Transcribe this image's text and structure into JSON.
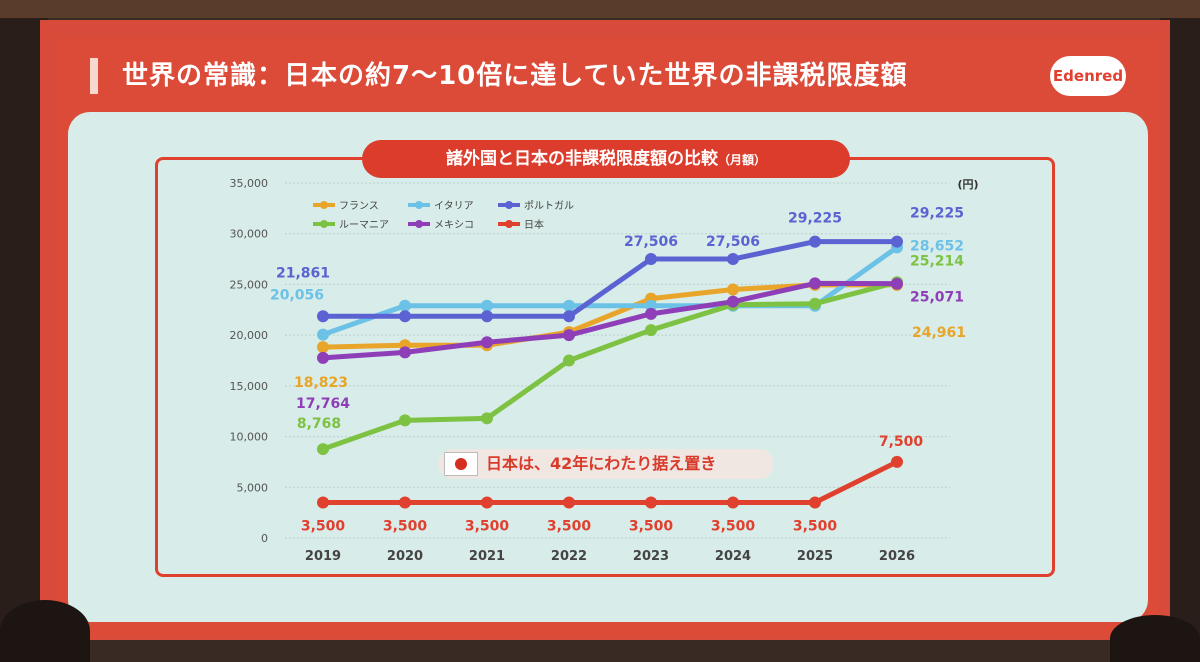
{
  "slide": {
    "title": "世界の常識：日本の約7～10倍に達していた世界の非課税限度額",
    "logo": "Edenred"
  },
  "chart_title": {
    "main": "諸外国と日本の非課税限度額の比較",
    "sub": "（月額）"
  },
  "callout": "日本は、42年にわたり据え置き",
  "chart_data": {
    "type": "line",
    "title": "諸外国と日本の非課税限度額の比較（月額）",
    "y_unit": "(円)",
    "ylim": [
      0,
      35000
    ],
    "yticks": [
      "35,000",
      "30,000",
      "25,000",
      "20,000",
      "15,000",
      "10,000",
      "5,000",
      "0"
    ],
    "x": [
      "2019",
      "2020",
      "2021",
      "2022",
      "2023",
      "2024",
      "2025",
      "2026"
    ],
    "grid": true,
    "legend_position": "top-left",
    "series": [
      {
        "name": "フランス",
        "color": "#e8a52a",
        "values": [
          18823,
          19000,
          19000,
          20300,
          23600,
          24500,
          24961,
          24961
        ]
      },
      {
        "name": "イタリア",
        "color": "#6cc2e6",
        "values": [
          20056,
          22900,
          22900,
          22900,
          22900,
          22900,
          22900,
          28652
        ]
      },
      {
        "name": "ポルトガル",
        "color": "#5b63d3",
        "values": [
          21861,
          21861,
          21861,
          21861,
          27506,
          27506,
          29225,
          29225
        ]
      },
      {
        "name": "ルーマニア",
        "color": "#7dc242",
        "values": [
          8768,
          11600,
          11800,
          17500,
          20500,
          23000,
          23100,
          25214
        ]
      },
      {
        "name": "メキシコ",
        "color": "#8e3fb8",
        "values": [
          17764,
          18300,
          19300,
          20000,
          22100,
          23300,
          25100,
          25071
        ]
      },
      {
        "name": "日本",
        "color": "#e0402e",
        "values": [
          3500,
          3500,
          3500,
          3500,
          3500,
          3500,
          3500,
          7500
        ]
      }
    ],
    "data_labels": [
      {
        "text": "21,861",
        "series": "ポルトガル",
        "x": "2019",
        "value": 21861
      },
      {
        "text": "20,056",
        "series": "イタリア",
        "x": "2019",
        "value": 20056
      },
      {
        "text": "18,823",
        "series": "フランス",
        "x": "2019",
        "value": 18823
      },
      {
        "text": "17,764",
        "series": "メキシコ",
        "x": "2019",
        "value": 17764
      },
      {
        "text": "8,768",
        "series": "ルーマニア",
        "x": "2019",
        "value": 8768
      },
      {
        "text": "27,506",
        "series": "ポルトガル",
        "x": "2023",
        "value": 27506
      },
      {
        "text": "27,506",
        "series": "ポルトガル",
        "x": "2024",
        "value": 27506
      },
      {
        "text": "29,225",
        "series": "ポルトガル",
        "x": "2025",
        "value": 29225
      },
      {
        "text": "29,225",
        "series": "ポルトガル",
        "x": "2026",
        "value": 29225
      },
      {
        "text": "28,652",
        "series": "イタリア",
        "x": "2026",
        "value": 28652
      },
      {
        "text": "25,214",
        "series": "ルーマニア",
        "x": "2026",
        "value": 25214
      },
      {
        "text": "25,071",
        "series": "メキシコ",
        "x": "2026",
        "value": 25071
      },
      {
        "text": "24,961",
        "series": "フランス",
        "x": "2026",
        "value": 24961
      },
      {
        "text": "7,500",
        "series": "日本",
        "x": "2026",
        "value": 7500
      },
      {
        "text": "3,500",
        "series": "日本",
        "x": "2019",
        "value": 3500
      },
      {
        "text": "3,500",
        "series": "日本",
        "x": "2020",
        "value": 3500
      },
      {
        "text": "3,500",
        "series": "日本",
        "x": "2021",
        "value": 3500
      },
      {
        "text": "3,500",
        "series": "日本",
        "x": "2022",
        "value": 3500
      },
      {
        "text": "3,500",
        "series": "日本",
        "x": "2023",
        "value": 3500
      },
      {
        "text": "3,500",
        "series": "日本",
        "x": "2024",
        "value": 3500
      },
      {
        "text": "3,500",
        "series": "日本",
        "x": "2025",
        "value": 3500
      }
    ]
  }
}
